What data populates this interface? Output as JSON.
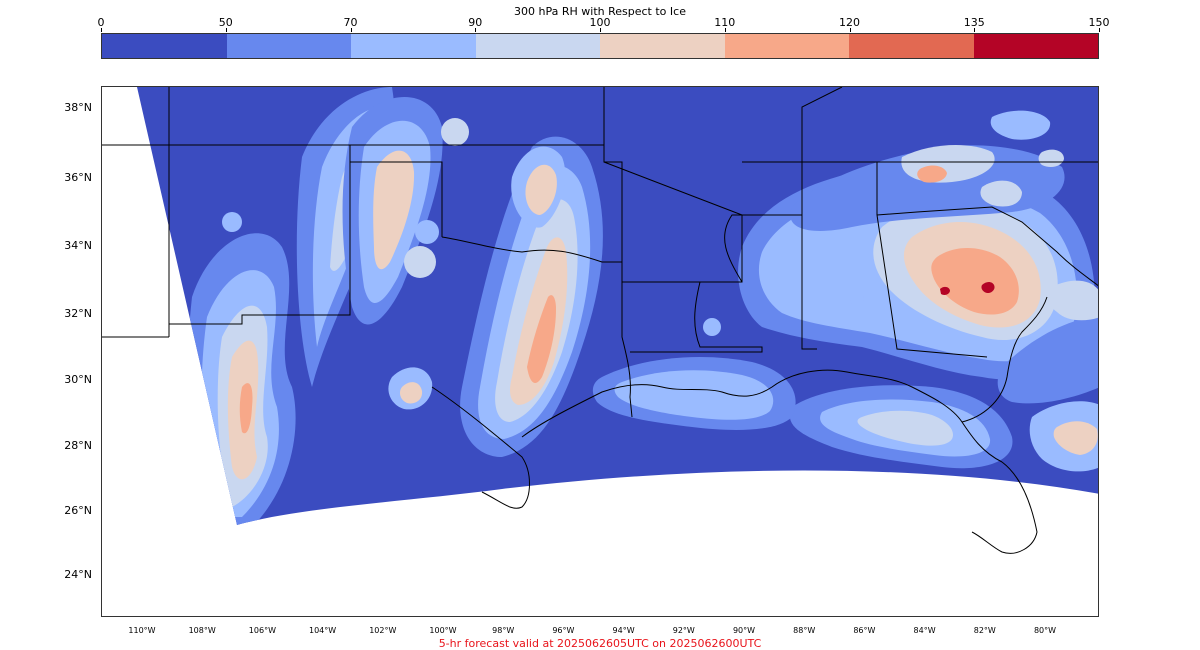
{
  "colorbar": {
    "title": "300 hPa RH with Respect to Ice",
    "ticks": [
      "0",
      "50",
      "70",
      "90",
      "100",
      "110",
      "120",
      "135",
      "150"
    ],
    "colors": [
      "#3b4cc0",
      "#6788ee",
      "#9abbff",
      "#c9d7f0",
      "#edd1c2",
      "#f7a889",
      "#e26952",
      "#b40426"
    ]
  },
  "map": {
    "ocean_color": "#3b4cc0",
    "no_data_color": "#ffffff",
    "lat_labels": [
      "38°N",
      "36°N",
      "34°N",
      "32°N",
      "30°N",
      "28°N",
      "26°N",
      "24°N"
    ],
    "lon_labels": [
      "110°W",
      "108°W",
      "106°W",
      "104°W",
      "102°W",
      "100°W",
      "98°W",
      "96°W",
      "94°W",
      "92°W",
      "90°W",
      "88°W",
      "86°W",
      "84°W",
      "82°W",
      "80°W"
    ]
  },
  "footer": "5-hr forecast valid at 2025062605UTC on 2025062600UTC"
}
